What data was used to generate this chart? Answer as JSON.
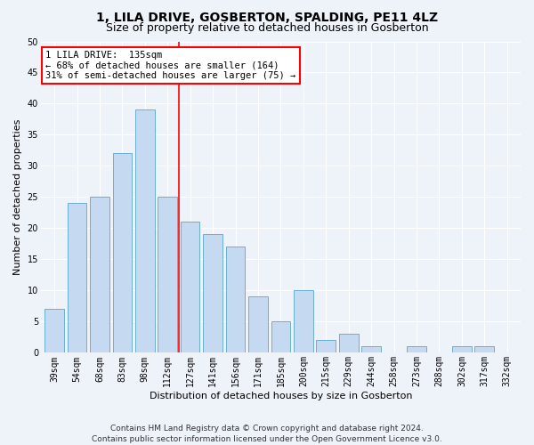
{
  "title": "1, LILA DRIVE, GOSBERTON, SPALDING, PE11 4LZ",
  "subtitle": "Size of property relative to detached houses in Gosberton",
  "xlabel": "Distribution of detached houses by size in Gosberton",
  "ylabel": "Number of detached properties",
  "categories": [
    "39sqm",
    "54sqm",
    "68sqm",
    "83sqm",
    "98sqm",
    "112sqm",
    "127sqm",
    "141sqm",
    "156sqm",
    "171sqm",
    "185sqm",
    "200sqm",
    "215sqm",
    "229sqm",
    "244sqm",
    "258sqm",
    "273sqm",
    "288sqm",
    "302sqm",
    "317sqm",
    "332sqm"
  ],
  "values": [
    7,
    24,
    25,
    32,
    39,
    25,
    21,
    19,
    17,
    9,
    5,
    10,
    2,
    3,
    1,
    0,
    1,
    0,
    1,
    1,
    0
  ],
  "bar_color": "#c5d9f0",
  "bar_edge_color": "#6baed6",
  "vline_color": "red",
  "vline_x": 5.5,
  "annotation_line1": "1 LILA DRIVE:  135sqm",
  "annotation_line2": "← 68% of detached houses are smaller (164)",
  "annotation_line3": "31% of semi-detached houses are larger (75) →",
  "annotation_box_color": "white",
  "annotation_box_edge_color": "red",
  "ylim": [
    0,
    50
  ],
  "yticks": [
    0,
    5,
    10,
    15,
    20,
    25,
    30,
    35,
    40,
    45,
    50
  ],
  "footnote": "Contains HM Land Registry data © Crown copyright and database right 2024.\nContains public sector information licensed under the Open Government Licence v3.0.",
  "bg_color": "#eef2f9",
  "plot_bg_color": "#eef2f9",
  "grid_color": "white",
  "title_fontsize": 10,
  "subtitle_fontsize": 9,
  "xlabel_fontsize": 8,
  "ylabel_fontsize": 8,
  "tick_fontsize": 7,
  "annotation_fontsize": 7.5,
  "footnote_fontsize": 6.5
}
